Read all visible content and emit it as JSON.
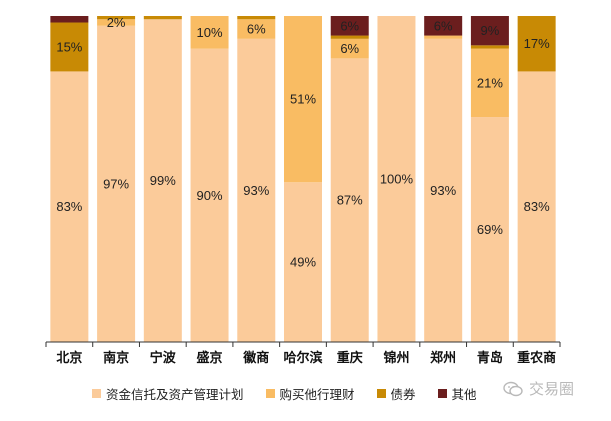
{
  "colors": {
    "fund_trust": "#FBCB9A",
    "other_wealth": "#F9BC63",
    "bonds": "#C88A05",
    "other": "#6B1E1E",
    "axis": "#333333"
  },
  "legend": {
    "items": [
      {
        "name": "资金信托及资产管理计划",
        "color": "#FBCB9A"
      },
      {
        "name": "购买他行理财",
        "color": "#F9BC63"
      },
      {
        "name": "债券",
        "color": "#C88A05"
      },
      {
        "name": "其他",
        "color": "#6B1E1E"
      }
    ]
  },
  "watermark": {
    "text": "交易圈"
  },
  "chart_data": {
    "type": "bar",
    "stacked": true,
    "ylim": [
      0,
      100
    ],
    "categories": [
      "北京",
      "南京",
      "宁波",
      "盛京",
      "徽商",
      "哈尔滨",
      "重庆",
      "锦州",
      "郑州",
      "青岛",
      "重农商"
    ],
    "series": [
      {
        "name": "资金信托及资产管理计划",
        "values": [
          83,
          97,
          99,
          90,
          93,
          49,
          87,
          100,
          93,
          69,
          83
        ],
        "labels": [
          "83%",
          "97%",
          "99%",
          "90%",
          "93%",
          "49%",
          "87%",
          "100%",
          "93%",
          "69%",
          "83%"
        ]
      },
      {
        "name": "购买他行理财",
        "values": [
          0,
          2,
          0,
          10,
          6,
          51,
          6,
          0,
          1,
          21,
          0
        ],
        "labels": [
          "",
          "2%",
          "",
          "10%",
          "6%",
          "51%",
          "6%",
          "",
          "",
          "21%",
          ""
        ]
      },
      {
        "name": "债券",
        "values": [
          15,
          1,
          1,
          0,
          1,
          0,
          1,
          0,
          0,
          1,
          17
        ],
        "labels": [
          "15%",
          "",
          "",
          "",
          "",
          "",
          "",
          "",
          "",
          "",
          "17%"
        ]
      },
      {
        "name": "其他",
        "values": [
          2,
          0,
          0,
          0,
          0,
          0,
          6,
          0,
          6,
          9,
          0
        ],
        "labels": [
          "",
          "",
          "",
          "",
          "",
          "",
          "6%",
          "",
          "6%",
          "9%",
          ""
        ]
      }
    ]
  }
}
